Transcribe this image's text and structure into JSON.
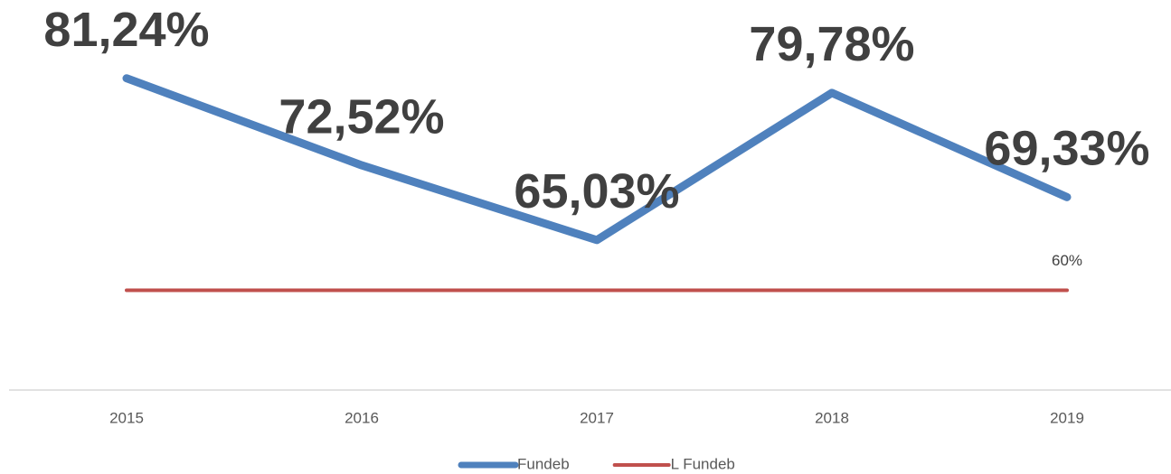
{
  "chart_data": {
    "type": "line",
    "categories": [
      "2015",
      "2016",
      "2017",
      "2018",
      "2019"
    ],
    "series": [
      {
        "name": "Fundeb",
        "color": "#4f81bd",
        "values": [
          81.24,
          72.52,
          65.03,
          79.78,
          69.33
        ],
        "value_labels": [
          "81,24%",
          "72,52%",
          "65,03%",
          "79,78%",
          "69,33%"
        ]
      },
      {
        "name": "L Fundeb",
        "color": "#c0504d",
        "values": [
          60,
          60,
          60,
          60,
          60
        ],
        "value_labels": [
          null,
          null,
          null,
          null,
          "60%"
        ]
      }
    ],
    "ylim": [
      50,
      88
    ],
    "legend": "bottom"
  }
}
